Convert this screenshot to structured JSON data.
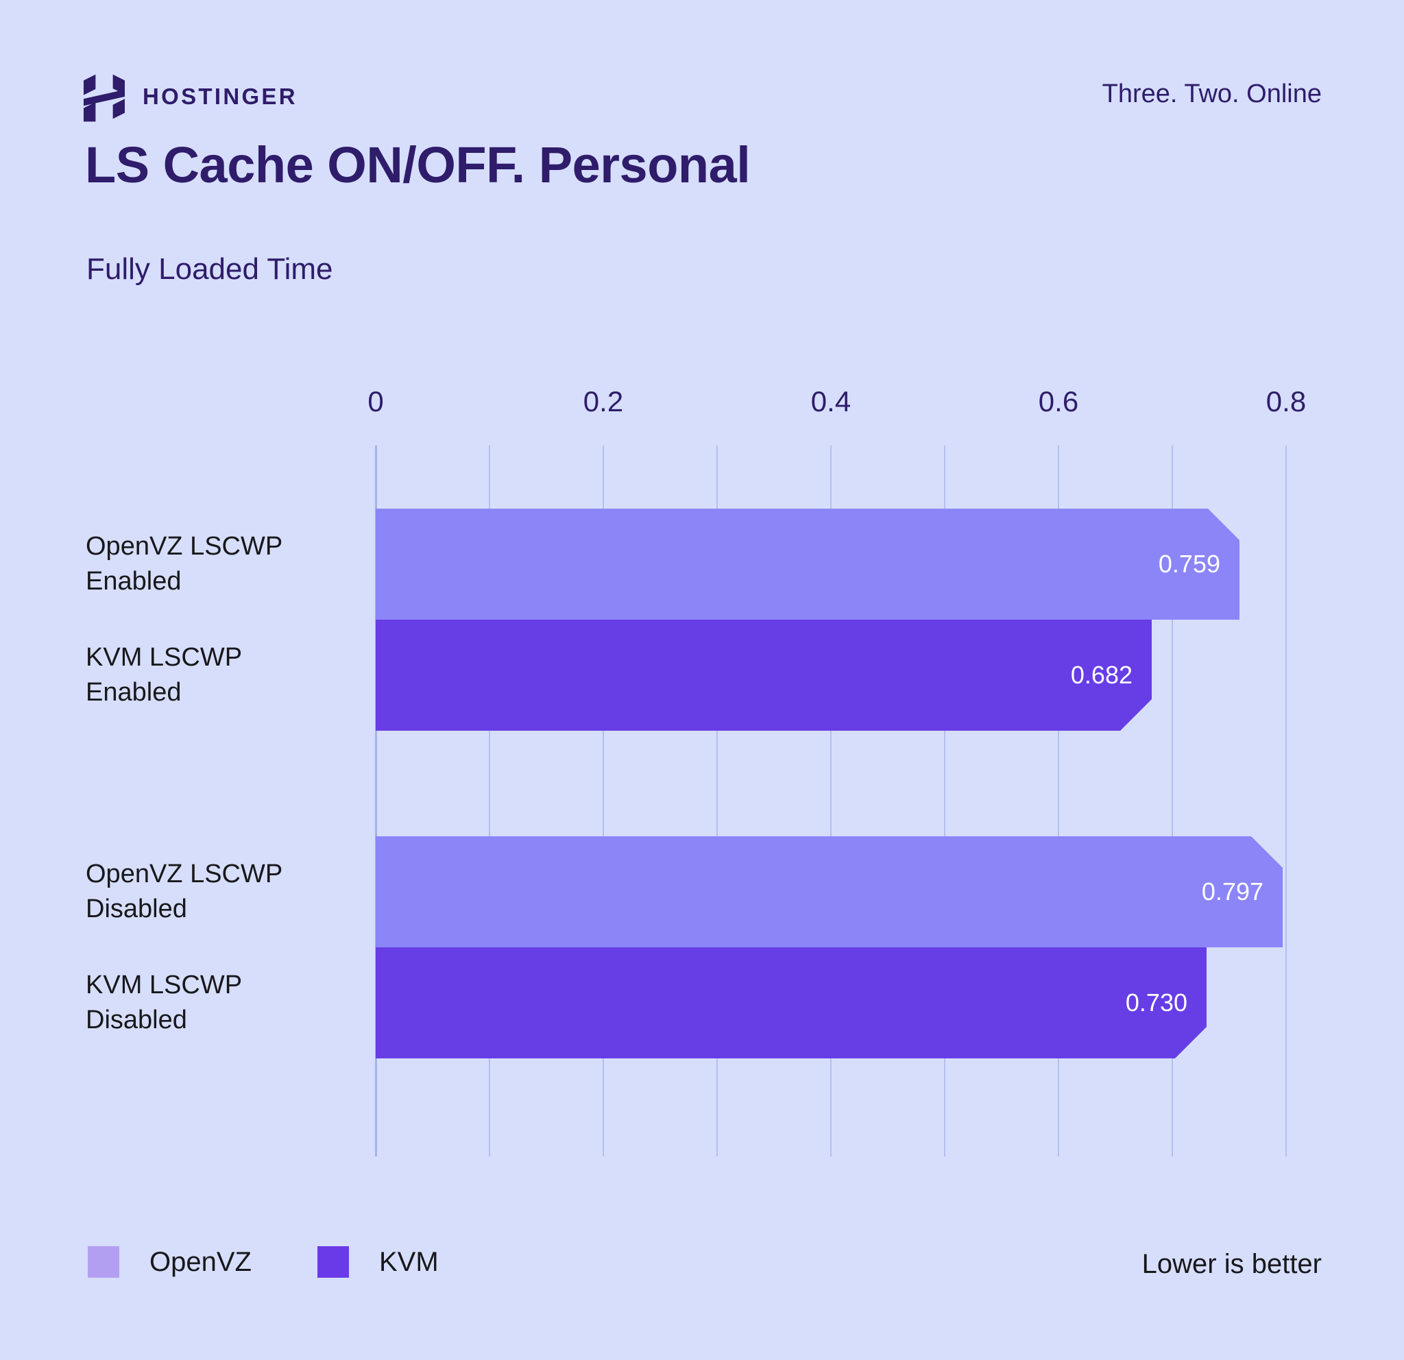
{
  "header": {
    "brand": "HOSTINGER",
    "tagline": "Three. Two. Online"
  },
  "title": "LS Cache ON/OFF. Personal",
  "subtitle": "Fully Loaded Time",
  "footer_note": "Lower is better",
  "colors": {
    "background": "#D6DEFB",
    "heading": "#2F1C6A",
    "text_dark": "#18181B",
    "bar_light": "#8C85F8",
    "bar_dark": "#673DE6",
    "legend_light": "#B39FF2",
    "legend_dark": "#6B3AE8",
    "gridline": "#B5BEF2",
    "gridline_zero": "#A7B1EC",
    "value_text": "#FFFFFF"
  },
  "legend": [
    {
      "label": "OpenVZ",
      "color_key": "legend_light"
    },
    {
      "label": "KVM",
      "color_key": "legend_dark"
    }
  ],
  "chart_data": {
    "type": "bar",
    "orientation": "horizontal",
    "title": "LS Cache ON/OFF. Personal",
    "subtitle": "Fully Loaded Time",
    "xlabel": "",
    "ylabel": "",
    "axis": {
      "min": 0,
      "max": 0.8,
      "ticks": [
        0,
        0.2,
        0.4,
        0.6,
        0.8
      ],
      "tick_labels": [
        "0",
        "0.2",
        "0.4",
        "0.6",
        "0.8"
      ],
      "minor_grid_step": 0.1,
      "grid": true,
      "grid_position": "top-axis"
    },
    "series_names": [
      "OpenVZ",
      "KVM"
    ],
    "groups": [
      {
        "bars": [
          {
            "label": "OpenVZ LSCWP Enabled",
            "label_lines": [
              "OpenVZ LSCWP",
              "Enabled"
            ],
            "series": "OpenVZ",
            "value": 0.759,
            "display_value": "0.759"
          },
          {
            "label": "KVM LSCWP Enabled",
            "label_lines": [
              "KVM LSCWP",
              "Enabled"
            ],
            "series": "KVM",
            "value": 0.682,
            "display_value": "0.682"
          }
        ]
      },
      {
        "bars": [
          {
            "label": "OpenVZ LSCWP Disabled",
            "label_lines": [
              "OpenVZ LSCWP",
              "Disabled"
            ],
            "series": "OpenVZ",
            "value": 0.797,
            "display_value": "0.797"
          },
          {
            "label": "KVM LSCWP Disabled",
            "label_lines": [
              "KVM LSCWP",
              "Disabled"
            ],
            "series": "KVM",
            "value": 0.73,
            "display_value": "0.730"
          }
        ]
      }
    ],
    "legend_entries": [
      "OpenVZ",
      "KVM"
    ],
    "note": "Lower is better"
  }
}
